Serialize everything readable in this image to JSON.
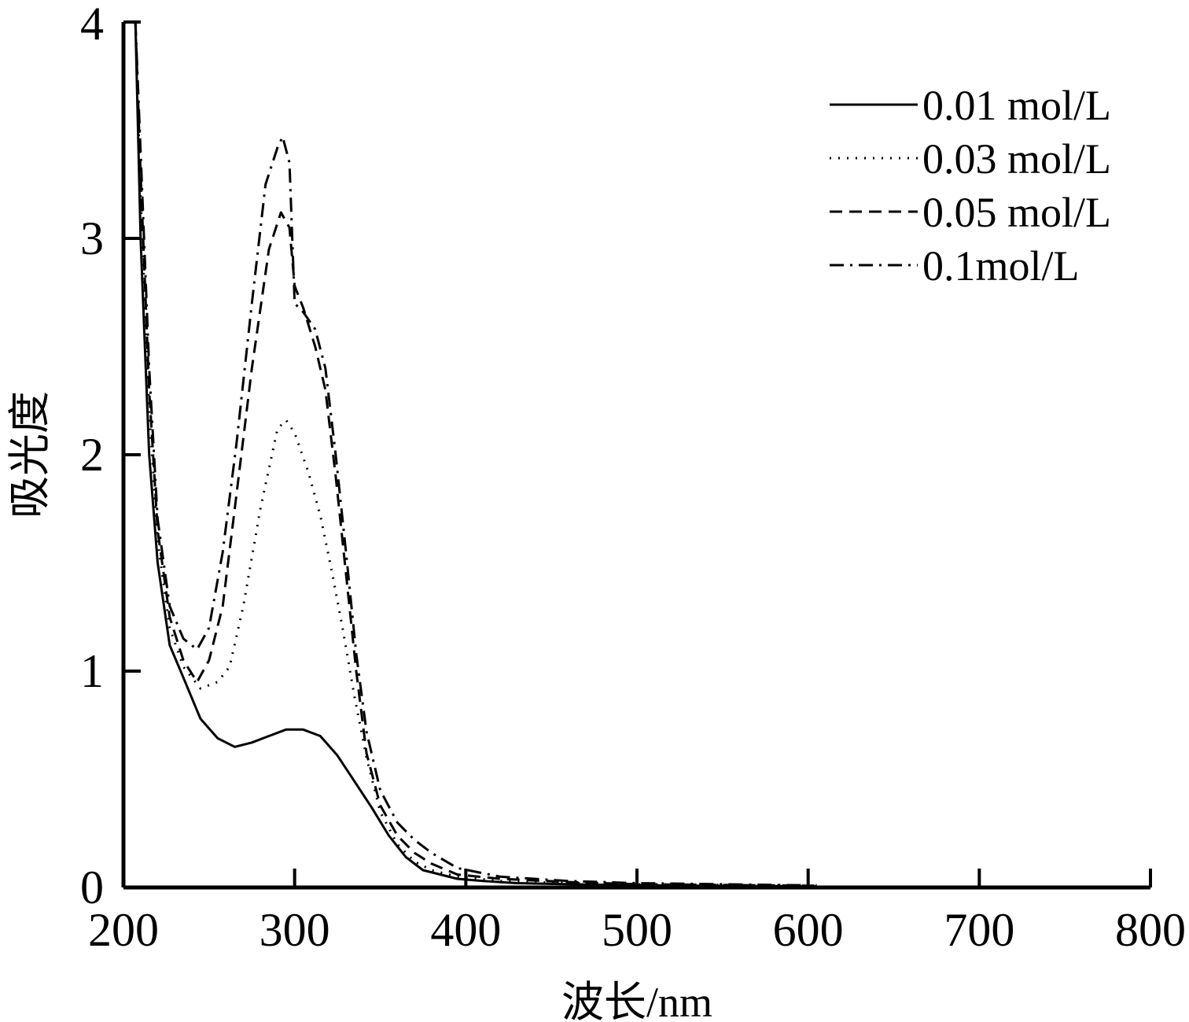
{
  "chart_data": {
    "type": "line",
    "title": "",
    "xlabel": "波长/nm",
    "ylabel": "吸光度",
    "xlim": [
      200,
      800
    ],
    "ylim": [
      0,
      4
    ],
    "xticks": [
      200,
      300,
      400,
      500,
      600,
      700,
      800
    ],
    "yticks": [
      0,
      1,
      2,
      3,
      4
    ],
    "grid": false,
    "legend_position": "top-right",
    "series": [
      {
        "name": "0.01 mol/L",
        "line_style": "solid",
        "color": "#000000",
        "points": [
          [
            207,
            4.0
          ],
          [
            210,
            3.0
          ],
          [
            215,
            2.0
          ],
          [
            220,
            1.5
          ],
          [
            227,
            1.12
          ],
          [
            235,
            0.97
          ],
          [
            245,
            0.78
          ],
          [
            255,
            0.69
          ],
          [
            265,
            0.65
          ],
          [
            275,
            0.67
          ],
          [
            285,
            0.7
          ],
          [
            295,
            0.73
          ],
          [
            305,
            0.73
          ],
          [
            315,
            0.7
          ],
          [
            325,
            0.61
          ],
          [
            335,
            0.49
          ],
          [
            345,
            0.37
          ],
          [
            355,
            0.24
          ],
          [
            365,
            0.14
          ],
          [
            375,
            0.08
          ],
          [
            385,
            0.06
          ],
          [
            395,
            0.04
          ],
          [
            410,
            0.03
          ],
          [
            430,
            0.02
          ],
          [
            460,
            0.015
          ],
          [
            500,
            0.01
          ],
          [
            600,
            0.005
          ],
          [
            605,
            0.005
          ]
        ]
      },
      {
        "name": "0.03 mol/L",
        "line_style": "dotted",
        "color": "#000000",
        "points": [
          [
            207,
            4.0
          ],
          [
            210,
            3.2
          ],
          [
            215,
            2.2
          ],
          [
            220,
            1.6
          ],
          [
            227,
            1.2
          ],
          [
            235,
            1.02
          ],
          [
            245,
            0.92
          ],
          [
            255,
            0.95
          ],
          [
            262,
            1.02
          ],
          [
            270,
            1.3
          ],
          [
            280,
            1.75
          ],
          [
            290,
            2.12
          ],
          [
            295,
            2.16
          ],
          [
            300,
            2.1
          ],
          [
            308,
            1.92
          ],
          [
            315,
            1.72
          ],
          [
            322,
            1.45
          ],
          [
            328,
            1.2
          ],
          [
            335,
            0.88
          ],
          [
            342,
            0.6
          ],
          [
            350,
            0.35
          ],
          [
            360,
            0.2
          ],
          [
            370,
            0.12
          ],
          [
            380,
            0.08
          ],
          [
            395,
            0.05
          ],
          [
            420,
            0.03
          ],
          [
            460,
            0.02
          ],
          [
            500,
            0.015
          ],
          [
            600,
            0.008
          ],
          [
            605,
            0.008
          ]
        ]
      },
      {
        "name": "0.05 mol/L",
        "line_style": "dashed",
        "color": "#000000",
        "points": [
          [
            207,
            4.0
          ],
          [
            210,
            3.3
          ],
          [
            215,
            2.3
          ],
          [
            220,
            1.65
          ],
          [
            227,
            1.25
          ],
          [
            235,
            1.05
          ],
          [
            243,
            0.95
          ],
          [
            250,
            1.05
          ],
          [
            258,
            1.3
          ],
          [
            265,
            1.75
          ],
          [
            275,
            2.4
          ],
          [
            285,
            2.95
          ],
          [
            292,
            3.12
          ],
          [
            297,
            3.05
          ],
          [
            300,
            2.78
          ],
          [
            305,
            2.68
          ],
          [
            312,
            2.5
          ],
          [
            318,
            2.3
          ],
          [
            324,
            1.9
          ],
          [
            330,
            1.45
          ],
          [
            336,
            1.0
          ],
          [
            342,
            0.62
          ],
          [
            350,
            0.38
          ],
          [
            360,
            0.24
          ],
          [
            370,
            0.16
          ],
          [
            380,
            0.11
          ],
          [
            395,
            0.06
          ],
          [
            420,
            0.04
          ],
          [
            460,
            0.025
          ],
          [
            500,
            0.015
          ],
          [
            600,
            0.008
          ],
          [
            605,
            0.008
          ]
        ]
      },
      {
        "name": "0.1mol/L",
        "line_style": "dashdot",
        "color": "#000000",
        "points": [
          [
            207,
            4.0
          ],
          [
            210,
            3.4
          ],
          [
            215,
            2.4
          ],
          [
            220,
            1.7
          ],
          [
            227,
            1.3
          ],
          [
            235,
            1.15
          ],
          [
            243,
            1.1
          ],
          [
            250,
            1.2
          ],
          [
            258,
            1.55
          ],
          [
            266,
            2.05
          ],
          [
            275,
            2.7
          ],
          [
            283,
            3.25
          ],
          [
            290,
            3.42
          ],
          [
            293,
            3.47
          ],
          [
            297,
            3.35
          ],
          [
            300,
            2.7
          ],
          [
            305,
            2.66
          ],
          [
            312,
            2.58
          ],
          [
            318,
            2.4
          ],
          [
            324,
            2.0
          ],
          [
            330,
            1.55
          ],
          [
            336,
            1.08
          ],
          [
            342,
            0.72
          ],
          [
            350,
            0.45
          ],
          [
            360,
            0.3
          ],
          [
            370,
            0.22
          ],
          [
            380,
            0.16
          ],
          [
            395,
            0.09
          ],
          [
            420,
            0.05
          ],
          [
            460,
            0.03
          ],
          [
            500,
            0.02
          ],
          [
            600,
            0.01
          ],
          [
            605,
            0.01
          ]
        ]
      }
    ]
  }
}
